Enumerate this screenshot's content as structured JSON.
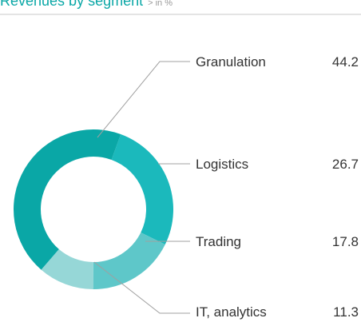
{
  "chart_data": {
    "type": "donut",
    "title": "Revenues by segment",
    "subtitle": "> in %",
    "categories": [
      "Granulation",
      "Logistics",
      "Trading",
      "IT, analytics"
    ],
    "values": [
      44.2,
      26.7,
      17.8,
      11.3
    ],
    "colors": [
      "#0aa7a6",
      "#1bb9bc",
      "#5ec7c9",
      "#96d7d7"
    ]
  }
}
